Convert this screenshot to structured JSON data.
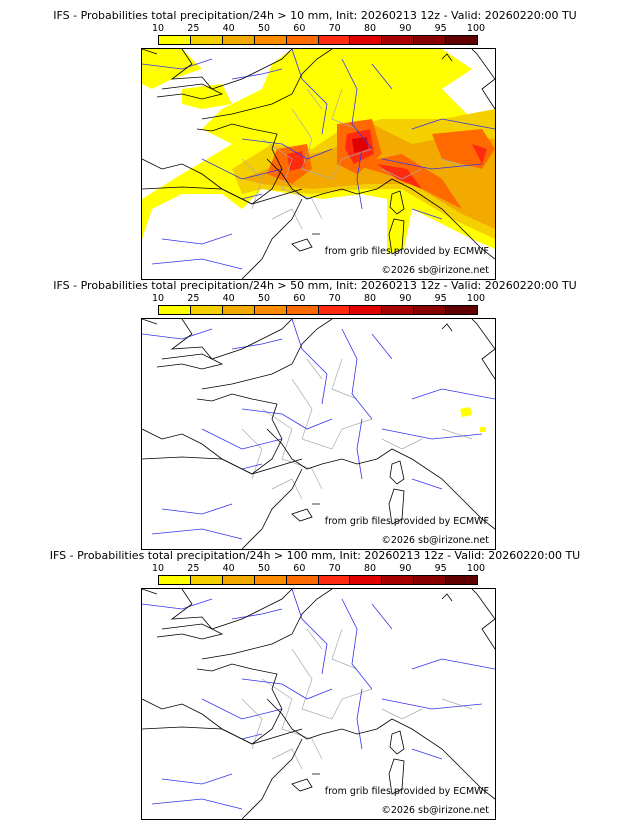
{
  "colorbar": {
    "ticks": [
      "10",
      "25",
      "40",
      "50",
      "60",
      "70",
      "80",
      "90",
      "95",
      "100"
    ],
    "colors": [
      "#ffff00",
      "#f5d000",
      "#f3aa00",
      "#ff8c00",
      "#ff6a00",
      "#ff2a10",
      "#e00000",
      "#a80000",
      "#880000",
      "#600000"
    ]
  },
  "panels": [
    {
      "title": "IFS - Probabilities total precipitation/24h > 10 mm, Init: 20260213 12z - Valid: 20260220:00 TU",
      "credit_source": "from grib files provided by ECMWF",
      "credit_copyright": "©2026 sb@irizone.net"
    },
    {
      "title": "IFS - Probabilities total precipitation/24h > 50 mm, Init: 20260213 12z - Valid: 20260220:00 TU",
      "credit_source": "from grib files provided by ECMWF",
      "credit_copyright": "©2026 sb@irizone.net"
    },
    {
      "title": "IFS - Probabilities total precipitation/24h > 100 mm, Init: 20260213 12z - Valid: 20260220:00 TU",
      "credit_source": "from grib files provided by ECMWF",
      "credit_copyright": "©2026 sb@irizone.net"
    }
  ]
}
